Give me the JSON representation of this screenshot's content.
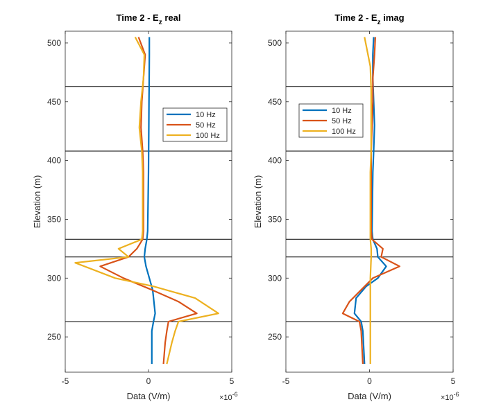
{
  "colors": {
    "10 Hz": "#0072BD",
    "50 Hz": "#D95319",
    "100 Hz": "#EDB120",
    "interface": "#000000",
    "axis": "#262626"
  },
  "chart_data": [
    {
      "type": "line",
      "title_main": "Time 2 - E",
      "title_sub": "z",
      "title_rest": " real",
      "xlabel": "Data (V/m)",
      "ylabel": "Elevation (m)",
      "xlim": [
        -5,
        5
      ],
      "ylim": [
        220,
        510
      ],
      "x_scale_label": "×10",
      "x_scale_exp": "-6",
      "xticks": [
        -5,
        0,
        5
      ],
      "yticks": [
        250,
        300,
        350,
        400,
        450,
        500
      ],
      "interfaces": [
        463,
        408,
        333,
        318,
        263
      ],
      "legend": {
        "position": "upper-right",
        "entries": [
          "10 Hz",
          "50 Hz",
          "100 Hz"
        ]
      },
      "series": [
        {
          "name": "10 Hz",
          "x": [
            0.05,
            0.05,
            0.04,
            0.03,
            0.02,
            0.01,
            0.0,
            -0.05,
            -0.1,
            -0.2,
            -0.25,
            -0.15,
            0.05,
            0.25,
            0.4,
            0.3,
            0.2,
            0.2,
            0.2,
            0.2
          ],
          "y": [
            505,
            490,
            470,
            450,
            430,
            408,
            390,
            340,
            333,
            325,
            318,
            310,
            300,
            290,
            270,
            263,
            255,
            245,
            235,
            227
          ]
        },
        {
          "name": "50 Hz",
          "x": [
            -0.6,
            -0.2,
            -0.3,
            -0.4,
            -0.45,
            -0.35,
            -0.3,
            -0.3,
            -0.35,
            -0.7,
            -1.2,
            -2.9,
            -1.5,
            0.2,
            1.8,
            2.9,
            1.2,
            1.1,
            1.0,
            0.9
          ],
          "y": [
            505,
            490,
            470,
            450,
            428,
            408,
            390,
            340,
            333,
            325,
            318,
            310,
            300,
            290,
            280,
            270,
            263,
            255,
            245,
            227
          ]
        },
        {
          "name": "100 Hz",
          "x": [
            -0.8,
            -0.25,
            -0.3,
            -0.45,
            -0.55,
            -0.4,
            -0.35,
            -0.35,
            -0.4,
            -1.8,
            -1.2,
            -4.4,
            -2.0,
            0.3,
            2.8,
            4.2,
            1.8,
            1.6,
            1.4,
            1.1
          ],
          "y": [
            505,
            490,
            470,
            450,
            428,
            408,
            390,
            340,
            333,
            325,
            318,
            313,
            300,
            293,
            283,
            270,
            263,
            255,
            245,
            227
          ]
        }
      ]
    },
    {
      "type": "line",
      "title_main": "Time 2 - E",
      "title_sub": "z",
      "title_rest": " imag",
      "xlabel": "Data (V/m)",
      "ylabel": "Elevation (m)",
      "xlim": [
        -5,
        5
      ],
      "ylim": [
        220,
        510
      ],
      "x_scale_label": "×10",
      "x_scale_exp": "-6",
      "xticks": [
        -5,
        0,
        5
      ],
      "yticks": [
        250,
        300,
        350,
        400,
        450,
        500
      ],
      "interfaces": [
        463,
        408,
        333,
        318,
        263
      ],
      "legend": {
        "position": "upper-left",
        "entries": [
          "10 Hz",
          "50 Hz",
          "100 Hz"
        ]
      },
      "series": [
        {
          "name": "10 Hz",
          "x": [
            0.25,
            0.2,
            0.2,
            0.25,
            0.3,
            0.25,
            0.2,
            0.15,
            0.2,
            0.45,
            0.5,
            1.0,
            0.5,
            -0.2,
            -0.8,
            -0.9,
            -0.5,
            -0.4,
            -0.3
          ],
          "y": [
            505,
            490,
            470,
            450,
            430,
            408,
            390,
            340,
            333,
            325,
            318,
            310,
            300,
            293,
            283,
            270,
            263,
            255,
            227
          ]
        },
        {
          "name": "50 Hz",
          "x": [
            0.35,
            0.3,
            0.2,
            0.2,
            0.15,
            0.1,
            0.1,
            0.1,
            0.15,
            0.8,
            0.7,
            1.8,
            0.2,
            -0.5,
            -1.2,
            -1.6,
            -0.6,
            -0.5,
            -0.4
          ],
          "y": [
            505,
            490,
            470,
            450,
            430,
            408,
            390,
            340,
            333,
            325,
            318,
            310,
            300,
            290,
            280,
            270,
            263,
            255,
            227
          ]
        },
        {
          "name": "100 Hz",
          "x": [
            -0.3,
            0.05,
            0.1,
            0.1,
            0.1,
            0.1,
            0.05,
            0.05,
            0.05,
            0.1,
            0.1,
            0.05,
            0.05,
            0.05,
            0.05,
            0.05
          ],
          "y": [
            505,
            480,
            460,
            440,
            420,
            408,
            390,
            340,
            333,
            325,
            318,
            300,
            280,
            263,
            250,
            227
          ]
        }
      ]
    }
  ]
}
